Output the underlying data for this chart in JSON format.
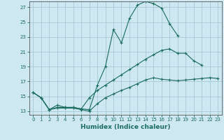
{
  "xlabel": "Humidex (Indice chaleur)",
  "bg_color": "#cde8f0",
  "grid_color": "#a8c8d8",
  "line_color": "#1a6b60",
  "spine_color": "#555555",
  "xlim": [
    -0.5,
    23.5
  ],
  "ylim": [
    12.5,
    27.8
  ],
  "xticks": [
    0,
    1,
    2,
    3,
    4,
    5,
    6,
    7,
    8,
    9,
    10,
    11,
    12,
    13,
    14,
    15,
    16,
    17,
    18,
    19,
    20,
    21,
    22,
    23
  ],
  "yticks": [
    13,
    15,
    17,
    19,
    21,
    23,
    25,
    27
  ],
  "line1_y": [
    15.5,
    14.8,
    13.2,
    13.8,
    13.5,
    13.5,
    13.3,
    13.2,
    16.5,
    19.0,
    24.0,
    22.2,
    25.5,
    27.3,
    27.8,
    27.5,
    26.9,
    24.8,
    23.2,
    null,
    null,
    null,
    null,
    null
  ],
  "line2_y": [
    15.5,
    14.8,
    13.2,
    13.5,
    13.5,
    13.5,
    13.3,
    14.8,
    15.8,
    16.5,
    17.2,
    17.9,
    18.6,
    19.3,
    20.0,
    20.6,
    21.2,
    21.4,
    20.8,
    20.8,
    19.8,
    19.2,
    null,
    null
  ],
  "line3_y": [
    15.5,
    14.8,
    13.2,
    13.4,
    13.4,
    13.4,
    13.2,
    13.0,
    14.0,
    14.8,
    15.3,
    15.8,
    16.2,
    16.7,
    17.2,
    17.5,
    17.3,
    17.2,
    17.1,
    17.2,
    17.3,
    17.4,
    17.5,
    17.4
  ]
}
